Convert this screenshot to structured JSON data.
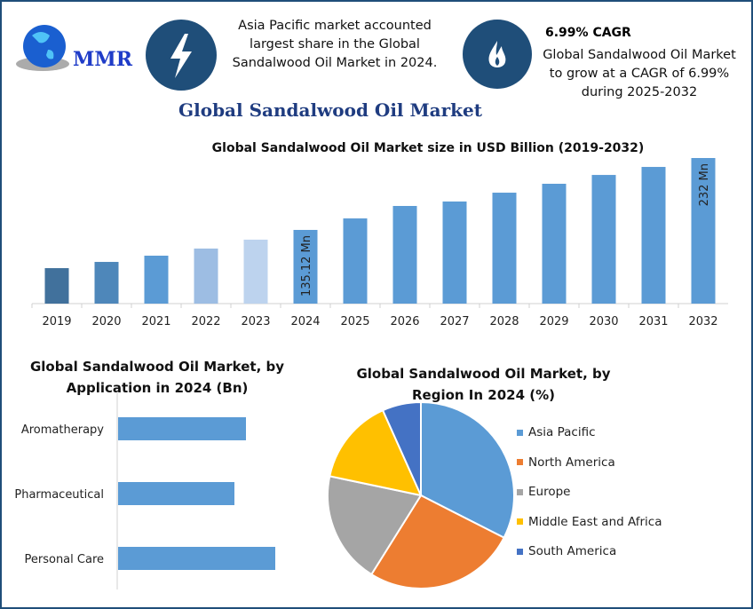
{
  "header": {
    "logo_text": "MMR",
    "icon_left": "lightning-bolt-icon",
    "icon_right": "flame-icon",
    "info_left": "Asia Pacific market accounted largest share in the Global Sandalwood Oil Market in 2024.",
    "cagr_title": "6.99% CAGR",
    "info_right": "Global Sandalwood Oil Market to grow at a CAGR of 6.99% during 2025-2032",
    "accent": "#1f4e79"
  },
  "main_title": "Global Sandalwood Oil Market",
  "chart_data": [
    {
      "type": "bar",
      "title": "Global Sandalwood Oil Market size in USD Billion (2019-2032)",
      "categories": [
        "2019",
        "2020",
        "2021",
        "2022",
        "2023",
        "2024",
        "2025",
        "2026",
        "2027",
        "2028",
        "2029",
        "2030",
        "2031",
        "2032"
      ],
      "values": [
        83.6,
        92,
        100.4,
        110,
        122,
        135.12,
        150.6,
        167.4,
        173.4,
        185.3,
        197.3,
        209.2,
        220,
        232
      ],
      "colors": [
        "#41719c",
        "#4e87ba",
        "#5b9bd5",
        "#9dbde3",
        "#bdd3ee",
        "#5b9bd5",
        "#5b9bd5",
        "#5b9bd5",
        "#5b9bd5",
        "#5b9bd5",
        "#5b9bd5",
        "#5b9bd5",
        "#5b9bd5",
        "#5b9bd5"
      ],
      "data_labels": {
        "2024": "135.12 Mn",
        "2032": "232 Mn"
      },
      "ylim": [
        35.8,
        240
      ],
      "grid": false
    },
    {
      "type": "bar",
      "orientation": "horizontal",
      "title": "Global Sandalwood Oil Market, by Application in 2024 (Bn)",
      "categories": [
        "Aromatherapy",
        "Pharmaceutical",
        "Personal Care"
      ],
      "values": [
        144,
        131,
        177
      ],
      "color": "#5b9bd5",
      "grid": false
    },
    {
      "type": "pie",
      "title": "Global Sandalwood Oil Market, by Region In 2024 (%)",
      "labels": [
        "Asia Pacific",
        "North America",
        "Europe",
        "Middle East and Africa",
        "South America"
      ],
      "values": [
        32.5,
        26.4,
        19.4,
        15,
        6.7
      ],
      "colors": [
        "#5b9bd5",
        "#ed7d31",
        "#a5a5a5",
        "#ffc000",
        "#4472c4"
      ],
      "legend": "right"
    }
  ]
}
